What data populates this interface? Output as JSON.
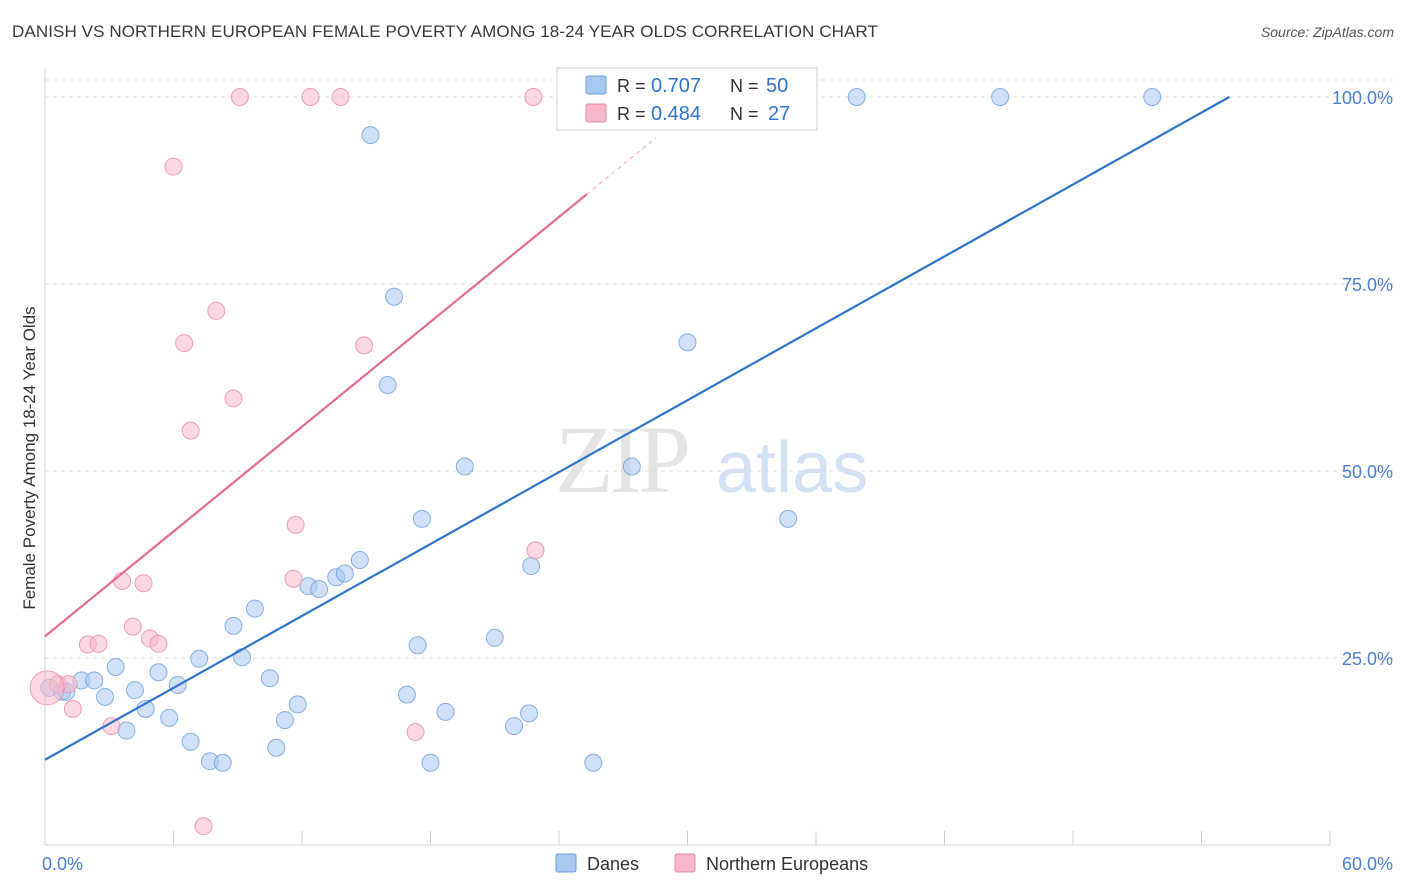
{
  "title": "DANISH VS NORTHERN EUROPEAN FEMALE POVERTY AMONG 18-24 YEAR OLDS CORRELATION CHART",
  "source": "Source: ZipAtlas.com",
  "watermark": {
    "zip": "ZIP",
    "atlas": "atlas"
  },
  "stats_box": {
    "rows": [
      {
        "r_label": "R = ",
        "r_value": "0.707",
        "n_label": "N = ",
        "n_value": "50",
        "color": "#a9c8f0"
      },
      {
        "r_label": "R = ",
        "r_value": "0.484",
        "n_label": "N = ",
        "n_value": "27",
        "color": "#f8b8cb"
      }
    ]
  },
  "legend": [
    {
      "label": "Danes",
      "color": "#a9c8f0"
    },
    {
      "label": "Northern Europeans",
      "color": "#f8b8cb"
    }
  ],
  "chart_data": {
    "type": "scatter",
    "title": "DANISH VS NORTHERN EUROPEAN FEMALE POVERTY AMONG 18-24 YEAR OLDS CORRELATION CHART",
    "xlabel": "",
    "ylabel": "Female Poverty Among 18-24 Year Olds",
    "xlim": [
      0,
      60
    ],
    "ylim": [
      0,
      100
    ],
    "x_tick_labels": [
      {
        "value": 0,
        "label": "0.0%"
      },
      {
        "value": 60,
        "label": "60.0%"
      }
    ],
    "y_tick_labels": [
      {
        "value": 25,
        "label": "25.0%"
      },
      {
        "value": 50,
        "label": "50.0%"
      },
      {
        "value": 75,
        "label": "75.0%"
      },
      {
        "value": 100,
        "label": "100.0%"
      }
    ],
    "grid": true,
    "legend_position": "bottom-center",
    "series": [
      {
        "name": "Danes",
        "color": "#a9c8f0",
        "line_color": "#2f74cc",
        "trend": {
          "x": [
            0,
            55.3
          ],
          "y": [
            11.4,
            100
          ]
        },
        "points": [
          [
            0.2,
            21
          ],
          [
            0.8,
            20.5
          ],
          [
            1.0,
            20.5
          ],
          [
            1.7,
            22
          ],
          [
            2.3,
            22.0
          ],
          [
            2.8,
            19.8
          ],
          [
            3.3,
            23.8
          ],
          [
            3.8,
            15.3
          ],
          [
            4.2,
            20.7
          ],
          [
            4.7,
            18.2
          ],
          [
            5.3,
            23.1
          ],
          [
            5.8,
            17.0
          ],
          [
            6.2,
            21.4
          ],
          [
            6.8,
            13.8
          ],
          [
            7.2,
            24.9
          ],
          [
            7.7,
            11.2
          ],
          [
            8.3,
            11.0
          ],
          [
            8.8,
            29.3
          ],
          [
            9.2,
            25.1
          ],
          [
            9.8,
            31.6
          ],
          [
            10.5,
            22.3
          ],
          [
            10.8,
            13.0
          ],
          [
            11.2,
            16.7
          ],
          [
            11.8,
            18.8
          ],
          [
            12.3,
            34.6
          ],
          [
            12.8,
            34.2
          ],
          [
            13.6,
            35.8
          ],
          [
            14.0,
            36.3
          ],
          [
            14.7,
            38.1
          ],
          [
            15.2,
            94.9
          ],
          [
            16.0,
            61.5
          ],
          [
            16.3,
            73.3
          ],
          [
            16.9,
            20.1
          ],
          [
            17.4,
            26.7
          ],
          [
            17.6,
            43.6
          ],
          [
            18.0,
            11.0
          ],
          [
            18.7,
            17.8
          ],
          [
            19.6,
            50.6
          ],
          [
            21.0,
            27.7
          ],
          [
            21.9,
            15.9
          ],
          [
            22.6,
            17.6
          ],
          [
            22.7,
            37.3
          ],
          [
            25.6,
            11.0
          ],
          [
            27.4,
            50.6
          ],
          [
            30.0,
            67.2
          ],
          [
            34.7,
            43.6
          ],
          [
            37.9,
            100
          ],
          [
            44.6,
            100
          ],
          [
            51.7,
            100
          ],
          [
            27.2,
            100
          ]
        ]
      },
      {
        "name": "Northern Europeans",
        "color": "#f8b8cb",
        "line_color": "#e56b93",
        "trend": {
          "x": [
            0,
            25.3
          ],
          "y": [
            27.9,
            87.0
          ]
        },
        "trend_dashed": {
          "x": [
            25.3,
            28.5
          ],
          "y": [
            87.0,
            94.5
          ]
        },
        "points": [
          [
            0.6,
            21.5
          ],
          [
            1.1,
            21.5
          ],
          [
            1.3,
            18.2
          ],
          [
            2.0,
            26.8
          ],
          [
            2.5,
            26.9
          ],
          [
            3.1,
            15.9
          ],
          [
            3.6,
            35.3
          ],
          [
            4.1,
            29.2
          ],
          [
            4.6,
            35.0
          ],
          [
            4.9,
            27.6
          ],
          [
            5.3,
            26.9
          ],
          [
            6.0,
            90.7
          ],
          [
            6.5,
            67.1
          ],
          [
            6.8,
            55.4
          ],
          [
            7.4,
            2.5
          ],
          [
            8.0,
            71.4
          ],
          [
            8.8,
            59.7
          ],
          [
            9.1,
            100
          ],
          [
            11.6,
            35.6
          ],
          [
            11.7,
            42.8
          ],
          [
            12.4,
            100
          ],
          [
            13.8,
            100
          ],
          [
            14.9,
            66.8
          ],
          [
            17.3,
            15.1
          ],
          [
            22.9,
            39.4
          ],
          [
            22.8,
            100
          ],
          [
            0.1,
            21
          ]
        ]
      }
    ]
  }
}
